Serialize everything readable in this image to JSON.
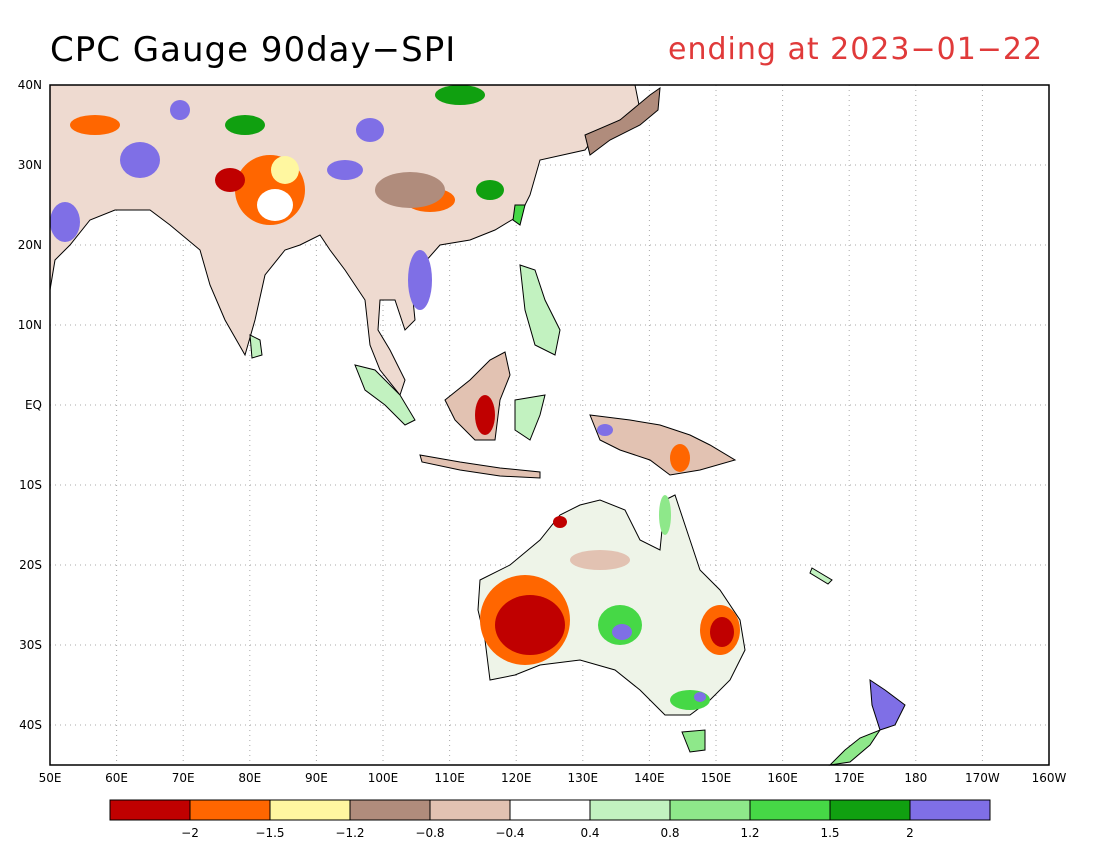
{
  "header": {
    "title": "CPC Gauge 90day−SPI",
    "subtitle": "ending at 2023−01−22"
  },
  "axes": {
    "lon_labels": [
      "50E",
      "60E",
      "70E",
      "80E",
      "90E",
      "100E",
      "110E",
      "120E",
      "130E",
      "140E",
      "150E",
      "160E",
      "170E",
      "180",
      "170W",
      "160W"
    ],
    "lat_labels": [
      "40N",
      "30N",
      "20N",
      "10N",
      "EQ",
      "10S",
      "20S",
      "30S",
      "40S"
    ]
  },
  "legend": {
    "colors": [
      "#c00000",
      "#ff6600",
      "#fff7a0",
      "#b08c7c",
      "#e2c2b2",
      "#ffffff",
      "#c2f2c0",
      "#8ee88a",
      "#46d846",
      "#10a010",
      "#7f6fe6"
    ],
    "labels": [
      "−2",
      "−1.5",
      "−1.2",
      "−0.8",
      "−0.4",
      "0.4",
      "0.8",
      "1.2",
      "1.5",
      "2"
    ]
  }
}
